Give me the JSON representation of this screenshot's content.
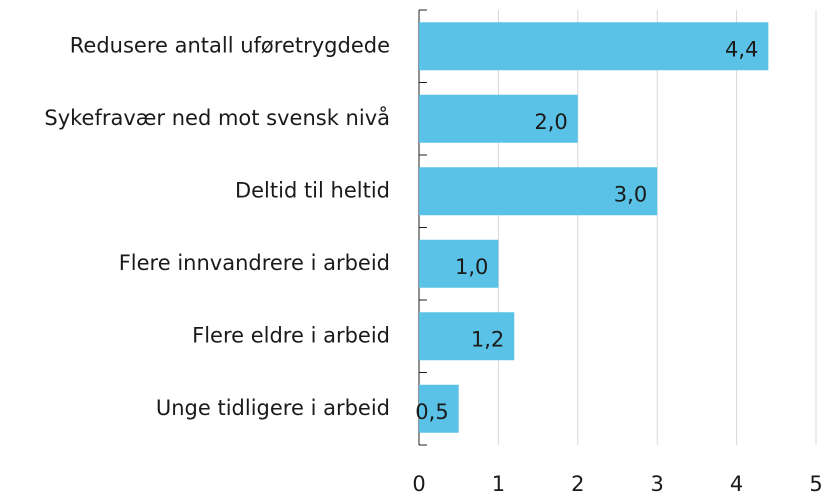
{
  "chart_data": {
    "type": "hbar",
    "categories": [
      "Redusere antall uføretrygdede",
      "Sykefravær ned mot svensk nivå",
      "Deltid til heltid",
      "Flere innvandrere i arbeid",
      "Flere eldre i arbeid",
      "Unge tidligere i arbeid"
    ],
    "values": [
      4.4,
      2.0,
      3.0,
      1.0,
      1.2,
      0.5
    ],
    "value_labels": [
      "4,4",
      "2,0",
      "3,0",
      "1,0",
      "1,2",
      "0,5"
    ],
    "color": "#5bc2e7",
    "xlim": [
      0,
      5
    ],
    "xticks": [
      0,
      1,
      2,
      3,
      4,
      5
    ],
    "grid": true
  }
}
